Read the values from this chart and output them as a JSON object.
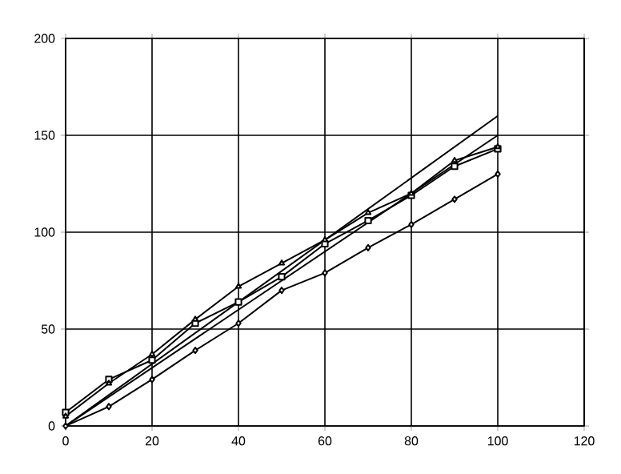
{
  "chart_data": {
    "type": "line",
    "xlim": [
      0,
      120
    ],
    "ylim": [
      0,
      200
    ],
    "xticks": [
      0,
      20,
      40,
      60,
      80,
      100,
      120
    ],
    "yticks": [
      0,
      50,
      100,
      150,
      200
    ],
    "grid": true,
    "series": [
      {
        "color": "#000000",
        "x": [
          0,
          100
        ],
        "values": [
          0,
          160
        ]
      },
      {
        "color": "#000000",
        "x": [
          0,
          100
        ],
        "values": [
          0,
          150
        ]
      },
      {
        "color": "#000000",
        "marker": "diamond",
        "x": [
          0,
          10,
          20,
          30,
          40,
          50,
          60,
          70,
          80,
          90,
          100
        ],
        "values": [
          0,
          10,
          24,
          39,
          53,
          70,
          79,
          92,
          104,
          117,
          130
        ]
      },
      {
        "color": "#000000",
        "marker": "square",
        "x": [
          0,
          10,
          20,
          30,
          40,
          50,
          60,
          70,
          80,
          90,
          100
        ],
        "values": [
          7,
          24,
          34,
          53,
          64,
          77,
          94,
          106,
          119,
          134,
          143
        ]
      },
      {
        "color": "#000000",
        "marker": "triangle",
        "x": [
          0,
          10,
          20,
          30,
          40,
          50,
          60,
          70,
          80,
          90,
          100
        ],
        "values": [
          5,
          22,
          37,
          55,
          72,
          84,
          96,
          110,
          120,
          137,
          144
        ]
      }
    ]
  }
}
